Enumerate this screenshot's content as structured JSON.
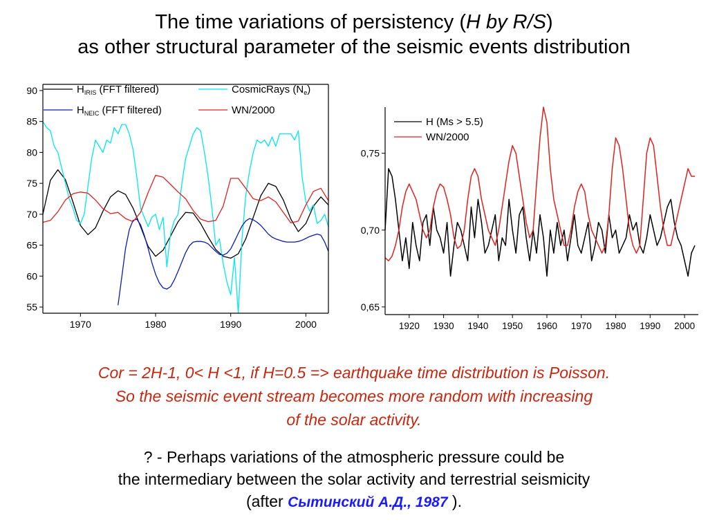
{
  "title": {
    "line1_prefix": "The time variations of persistency (",
    "line1_italic": "H by R/S",
    "line1_suffix": ")",
    "line2": "as other structural parameter of the seismic events distribution"
  },
  "chart_data": [
    {
      "type": "line",
      "xlim": [
        1965,
        2003
      ],
      "ylim": [
        54,
        91
      ],
      "xticks": [
        1970,
        1980,
        1990,
        2000
      ],
      "xtick_labels": [
        "1970",
        "1980",
        "1990",
        "2000"
      ],
      "yticks": [
        55,
        60,
        65,
        70,
        75,
        80,
        85,
        90
      ],
      "ytick_labels": [
        "55",
        "60",
        "65",
        "70",
        "75",
        "80",
        "85",
        "90"
      ],
      "grid": false,
      "legend_position": "top",
      "legend": [
        {
          "main": "H",
          "sub": "IRIS",
          "rest": " (FFT filtered)"
        },
        {
          "main": "CosmicRays (N",
          "sub": "e",
          "rest": ")"
        },
        {
          "main": "H",
          "sub": "NEIC",
          "rest": " (FFT filtered)"
        },
        {
          "main": "WN/2000",
          "sub": "",
          "rest": ""
        }
      ],
      "series": [
        {
          "color": "#000000",
          "x": [
            1965,
            1966,
            1967,
            1968,
            1969,
            1970,
            1971,
            1972,
            1973,
            1974,
            1975,
            1976,
            1977,
            1978,
            1979,
            1980,
            1981,
            1982,
            1983,
            1984,
            1985,
            1986,
            1987,
            1988,
            1989,
            1990,
            1991,
            1992,
            1993,
            1994,
            1995,
            1996,
            1997,
            1998,
            1999,
            2000,
            2001,
            2002,
            2003
          ],
          "y": [
            70,
            75.5,
            77.2,
            75.6,
            72,
            68.2,
            66.7,
            67.8,
            70.5,
            72.8,
            73.8,
            73.2,
            71,
            68,
            64.8,
            63.2,
            64.2,
            66.5,
            68.8,
            70.3,
            70.2,
            68.5,
            66.3,
            64.3,
            63.2,
            62.9,
            63.6,
            66,
            69.5,
            73,
            75,
            74.5,
            72.3,
            69.2,
            67.2,
            68.5,
            71.3,
            72.8,
            71.5
          ]
        },
        {
          "color": "#00e8f0",
          "x": [
            1965,
            1965.5,
            1966,
            1966.5,
            1967,
            1967.5,
            1968,
            1968.5,
            1969,
            1969.5,
            1970,
            1970.5,
            1971,
            1971.5,
            1972,
            1972.5,
            1973,
            1973.5,
            1974,
            1974.5,
            1975,
            1975.5,
            1976,
            1976.5,
            1977,
            1977.5,
            1978,
            1978.5,
            1979,
            1979.5,
            1980,
            1980.5,
            1981,
            1981.5,
            1982,
            1982.5,
            1983,
            1983.5,
            1984,
            1984.5,
            1985,
            1985.5,
            1986,
            1986.5,
            1987,
            1987.5,
            1988,
            1988.5,
            1989,
            1989.5,
            1990,
            1990.5,
            1991,
            1991.5,
            1992,
            1992.5,
            1993,
            1993.5,
            1994,
            1994.5,
            1995,
            1995.5,
            1996,
            1996.5,
            1997,
            1997.5,
            1998,
            1998.5,
            1999,
            1999.5,
            2000,
            2000.5,
            2001,
            2001.5,
            2002,
            2002.5,
            2003
          ],
          "y": [
            85,
            84,
            83.5,
            81,
            80,
            77.5,
            75,
            72.5,
            71,
            69,
            68.5,
            70,
            74.5,
            79,
            82,
            81,
            80,
            82,
            81.5,
            84,
            83,
            84.5,
            84.5,
            83,
            80.5,
            76,
            71,
            69.5,
            68,
            69.5,
            70,
            67.5,
            69.5,
            61.5,
            67,
            69,
            70,
            75,
            79,
            81,
            83,
            84,
            83.5,
            80,
            76,
            71,
            65,
            66,
            62,
            59,
            57,
            63,
            54,
            66,
            73,
            77,
            80,
            82,
            81.5,
            82,
            81,
            82.5,
            81,
            83,
            83,
            83,
            83,
            82,
            83.5,
            76,
            72,
            70.5,
            71.5,
            68.5,
            69,
            70,
            68
          ]
        },
        {
          "color": "#0a1ab4",
          "x": [
            1975,
            1975.5,
            1976,
            1976.5,
            1977,
            1977.5,
            1978,
            1978.5,
            1979,
            1979.5,
            1980,
            1980.5,
            1981,
            1981.5,
            1982,
            1982.5,
            1983,
            1983.5,
            1984,
            1984.5,
            1985,
            1985.5,
            1986,
            1986.5,
            1987,
            1987.5,
            1988,
            1988.5,
            1989,
            1989.5,
            1990,
            1990.5,
            1991,
            1991.5,
            1992,
            1992.5,
            1993,
            1993.5,
            1994,
            1994.5,
            1995,
            1995.5,
            1996,
            1996.5,
            1997,
            1997.5,
            1998,
            1998.5,
            1999,
            1999.5,
            2000,
            2000.5,
            2001,
            2001.5,
            2002,
            2002.5,
            2003
          ],
          "y": [
            55.3,
            59.8,
            64.5,
            67.5,
            69,
            69.2,
            68.3,
            66.6,
            64.5,
            62.2,
            60.3,
            58.9,
            58.1,
            57.9,
            58.3,
            59.4,
            60.8,
            62.3,
            63.8,
            64.9,
            65.5,
            65.6,
            65.6,
            65.5,
            65.2,
            64.6,
            64,
            63.5,
            63.4,
            63.7,
            64.4,
            65.6,
            66.9,
            68.1,
            68.9,
            69.3,
            69.1,
            68.7,
            68.2,
            67.5,
            66.8,
            66.3,
            66,
            65.8,
            65.6,
            65.5,
            65.5,
            65.5,
            65.6,
            65.8,
            66.1,
            66.4,
            66.6,
            66.8,
            66.6,
            65.5,
            64
          ]
        },
        {
          "color": "#e0201e",
          "x": [
            1965,
            1966,
            1967,
            1968,
            1969,
            1970,
            1971,
            1972,
            1973,
            1974,
            1975,
            1976,
            1977,
            1978,
            1979,
            1980,
            1981,
            1982,
            1983,
            1984,
            1985,
            1986,
            1987,
            1988,
            1989,
            1990,
            1991,
            1992,
            1993,
            1994,
            1995,
            1996,
            1997,
            1998,
            1999,
            2000,
            2001,
            2002,
            2003
          ],
          "y": [
            68.7,
            69,
            70.4,
            72.3,
            73.3,
            73.6,
            73.4,
            72.3,
            70.9,
            70.1,
            70.3,
            69.3,
            68.8,
            70.3,
            73.5,
            76.3,
            76,
            74.8,
            73.6,
            72.5,
            70.6,
            69.2,
            68.8,
            69,
            71.3,
            75.8,
            75.8,
            74.2,
            72.5,
            72.2,
            72.8,
            72,
            70.3,
            68.6,
            68.9,
            71.5,
            73.7,
            74.2,
            72.2
          ]
        }
      ]
    },
    {
      "type": "line",
      "xlim": [
        1913,
        2004
      ],
      "ylim": [
        0.645,
        0.78
      ],
      "xticks": [
        1920,
        1930,
        1940,
        1950,
        1960,
        1970,
        1980,
        1990,
        2000
      ],
      "xtick_labels": [
        "1920",
        "1930",
        "1940",
        "1950",
        "1960",
        "1970",
        "1980",
        "1990",
        "2000"
      ],
      "yticks": [
        0.65,
        0.7,
        0.75
      ],
      "ytick_labels": [
        "0,65",
        "0,70",
        "0,75"
      ],
      "grid": false,
      "legend_position": "top-left",
      "legend": [
        {
          "main": "H (Ms > 5.5)",
          "sub": "",
          "rest": ""
        },
        {
          "main": "WN/2000",
          "sub": "",
          "rest": ""
        }
      ],
      "series": [
        {
          "color": "#000000",
          "x": [
            1913,
            1914,
            1915,
            1916,
            1917,
            1918,
            1919,
            1920,
            1921,
            1922,
            1923,
            1924,
            1925,
            1926,
            1927,
            1928,
            1929,
            1930,
            1931,
            1932,
            1933,
            1934,
            1935,
            1936,
            1937,
            1938,
            1939,
            1940,
            1941,
            1942,
            1943,
            1944,
            1945,
            1946,
            1947,
            1948,
            1949,
            1950,
            1951,
            1952,
            1953,
            1954,
            1955,
            1956,
            1957,
            1958,
            1959,
            1960,
            1961,
            1962,
            1963,
            1964,
            1965,
            1966,
            1967,
            1968,
            1969,
            1970,
            1971,
            1972,
            1973,
            1974,
            1975,
            1976,
            1977,
            1978,
            1979,
            1980,
            1981,
            1982,
            1983,
            1984,
            1985,
            1986,
            1987,
            1988,
            1989,
            1990,
            1991,
            1992,
            1993,
            1994,
            1995,
            1996,
            1997,
            1998,
            1999,
            2000,
            2001,
            2002,
            2003
          ],
          "y": [
            0.7,
            0.74,
            0.735,
            0.72,
            0.7,
            0.68,
            0.695,
            0.675,
            0.705,
            0.69,
            0.68,
            0.705,
            0.71,
            0.69,
            0.715,
            0.7,
            0.695,
            0.685,
            0.705,
            0.67,
            0.69,
            0.705,
            0.7,
            0.69,
            0.68,
            0.715,
            0.695,
            0.72,
            0.705,
            0.685,
            0.69,
            0.7,
            0.71,
            0.68,
            0.695,
            0.69,
            0.72,
            0.7,
            0.685,
            0.71,
            0.715,
            0.695,
            0.68,
            0.7,
            0.685,
            0.71,
            0.695,
            0.67,
            0.7,
            0.685,
            0.705,
            0.69,
            0.7,
            0.68,
            0.695,
            0.71,
            0.69,
            0.685,
            0.695,
            0.705,
            0.68,
            0.69,
            0.705,
            0.7,
            0.685,
            0.71,
            0.695,
            0.7,
            0.685,
            0.69,
            0.695,
            0.71,
            0.7,
            0.705,
            0.69,
            0.685,
            0.695,
            0.71,
            0.7,
            0.69,
            0.695,
            0.705,
            0.715,
            0.72,
            0.705,
            0.695,
            0.69,
            0.68,
            0.67,
            0.685,
            0.69
          ]
        },
        {
          "color": "#e0201e",
          "x": [
            1913,
            1914,
            1915,
            1916,
            1917,
            1918,
            1919,
            1920,
            1921,
            1922,
            1923,
            1924,
            1925,
            1926,
            1927,
            1928,
            1929,
            1930,
            1931,
            1932,
            1933,
            1934,
            1935,
            1936,
            1937,
            1938,
            1939,
            1940,
            1941,
            1942,
            1943,
            1944,
            1945,
            1946,
            1947,
            1948,
            1949,
            1950,
            1951,
            1952,
            1953,
            1954,
            1955,
            1956,
            1957,
            1958,
            1959,
            1960,
            1961,
            1962,
            1963,
            1964,
            1965,
            1966,
            1967,
            1968,
            1969,
            1970,
            1971,
            1972,
            1973,
            1974,
            1975,
            1976,
            1977,
            1978,
            1979,
            1980,
            1981,
            1982,
            1983,
            1984,
            1985,
            1986,
            1987,
            1988,
            1989,
            1990,
            1991,
            1992,
            1993,
            1994,
            1995,
            1996,
            1997,
            1998,
            1999,
            2000,
            2001,
            2002,
            2003
          ],
          "y": [
            0.682,
            0.68,
            0.683,
            0.69,
            0.7,
            0.715,
            0.725,
            0.73,
            0.725,
            0.72,
            0.71,
            0.7,
            0.695,
            0.7,
            0.715,
            0.725,
            0.73,
            0.728,
            0.72,
            0.71,
            0.695,
            0.688,
            0.69,
            0.7,
            0.72,
            0.735,
            0.74,
            0.735,
            0.72,
            0.71,
            0.7,
            0.695,
            0.69,
            0.7,
            0.715,
            0.73,
            0.745,
            0.755,
            0.75,
            0.735,
            0.72,
            0.705,
            0.695,
            0.7,
            0.73,
            0.76,
            0.78,
            0.77,
            0.74,
            0.72,
            0.71,
            0.7,
            0.69,
            0.69,
            0.7,
            0.715,
            0.725,
            0.73,
            0.725,
            0.71,
            0.7,
            0.695,
            0.69,
            0.685,
            0.69,
            0.71,
            0.74,
            0.76,
            0.755,
            0.74,
            0.72,
            0.7,
            0.69,
            0.685,
            0.69,
            0.72,
            0.75,
            0.76,
            0.755,
            0.735,
            0.715,
            0.7,
            0.69,
            0.69,
            0.7,
            0.71,
            0.72,
            0.73,
            0.74,
            0.735,
            0.735
          ]
        }
      ]
    }
  ],
  "footer": {
    "cor_line1": "Cor = 2H-1,  0< H <1,   if  H=0.5 => earthquake time distribution is Poisson.",
    "cor_line2": "So the seismic event stream becomes more random with increasing",
    "cor_line3": "of  the solar activity.",
    "note_line1": "? - Perhaps variations of the atmospheric pressure could be",
    "note_line2": "the intermediary between the solar activity and terrestrial seismicity",
    "note_line3_prefix": "(after ",
    "note_line3_cite": "Сытинский А.Д., 1987",
    "note_line3_suffix": " )."
  },
  "colors": {
    "text_red": "#c8260e",
    "cite_blue": "#1a1aff"
  }
}
